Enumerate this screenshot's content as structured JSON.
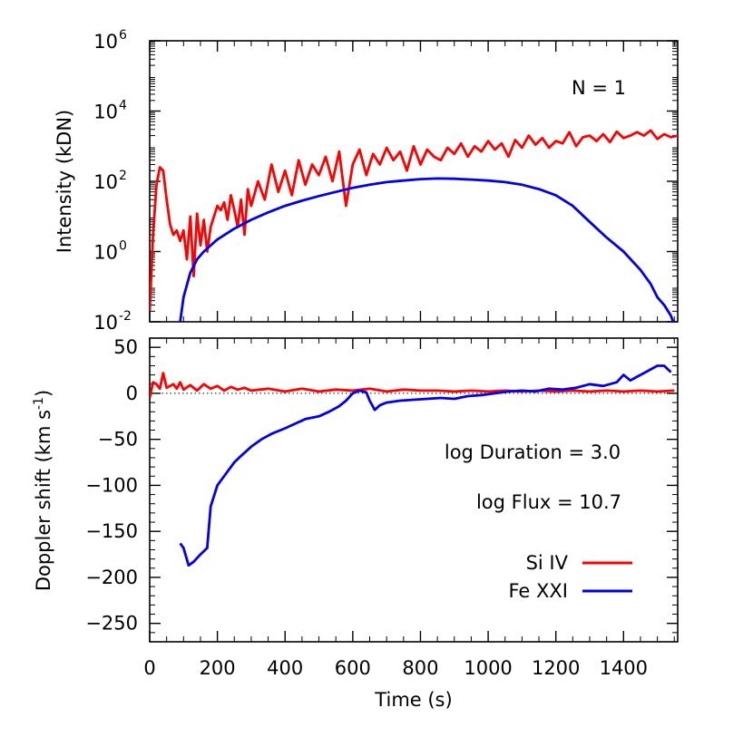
{
  "chart_data": [
    {
      "type": "line",
      "panel": "top",
      "ylabel": "Intensity (kDN)",
      "yscale": "log",
      "ylim": [
        0.01,
        1000000
      ],
      "xlim": [
        0,
        1560
      ],
      "yticks": [
        {
          "value": 0.01,
          "base": "10",
          "exp": "-2"
        },
        {
          "value": 1,
          "base": "10",
          "exp": "0"
        },
        {
          "value": 100,
          "base": "10",
          "exp": "2"
        },
        {
          "value": 10000,
          "base": "10",
          "exp": "4"
        },
        {
          "value": 1000000,
          "base": "10",
          "exp": "6"
        }
      ],
      "annotation": "N = 1",
      "series": [
        {
          "name": "Si IV",
          "color": "#ff0000",
          "x": [
            0,
            10,
            20,
            30,
            40,
            50,
            60,
            70,
            80,
            90,
            100,
            110,
            120,
            130,
            140,
            150,
            160,
            170,
            180,
            190,
            200,
            210,
            220,
            230,
            240,
            250,
            260,
            270,
            280,
            290,
            300,
            320,
            340,
            360,
            380,
            400,
            420,
            440,
            460,
            480,
            500,
            520,
            540,
            560,
            580,
            600,
            620,
            640,
            660,
            680,
            700,
            720,
            740,
            760,
            780,
            800,
            820,
            840,
            860,
            880,
            900,
            920,
            940,
            960,
            980,
            1000,
            1020,
            1040,
            1060,
            1080,
            1100,
            1120,
            1140,
            1160,
            1180,
            1200,
            1220,
            1240,
            1260,
            1280,
            1300,
            1320,
            1340,
            1360,
            1380,
            1400,
            1420,
            1440,
            1460,
            1480,
            1500,
            1520,
            1540,
            1560
          ],
          "y": [
            0.02,
            3,
            80,
            250,
            200,
            30,
            6,
            3,
            4,
            2,
            4,
            0.6,
            10,
            0.2,
            12,
            1.5,
            8,
            1,
            5,
            10,
            20,
            15,
            25,
            8,
            40,
            15,
            5,
            30,
            3,
            60,
            20,
            100,
            30,
            300,
            50,
            200,
            40,
            400,
            80,
            300,
            150,
            500,
            100,
            700,
            20,
            300,
            800,
            150,
            600,
            300,
            900,
            400,
            700,
            200,
            1000,
            300,
            800,
            500,
            400,
            900,
            600,
            1200,
            500,
            1000,
            700,
            1400,
            800,
            1200,
            500,
            1500,
            900,
            2000,
            1100,
            1700,
            900,
            1400,
            1200,
            2500,
            1000,
            1800,
            2000,
            1400,
            2200,
            1300,
            2600,
            1700,
            2000,
            2500,
            2000,
            2800,
            1600,
            2200,
            1800,
            2000
          ]
        },
        {
          "name": "Fe XXI",
          "color": "#0000ee",
          "x": [
            90,
            100,
            120,
            140,
            160,
            180,
            200,
            250,
            300,
            350,
            400,
            450,
            500,
            550,
            600,
            650,
            700,
            750,
            800,
            850,
            900,
            950,
            1000,
            1050,
            1100,
            1150,
            1200,
            1250,
            1300,
            1350,
            1400,
            1450,
            1480,
            1500,
            1520,
            1540,
            1550
          ],
          "y": [
            0.01,
            0.05,
            0.25,
            0.6,
            1,
            1.5,
            2.2,
            4.5,
            8,
            13,
            20,
            28,
            38,
            50,
            65,
            80,
            95,
            105,
            115,
            120,
            118,
            112,
            105,
            95,
            80,
            60,
            40,
            20,
            7,
            2.5,
            1,
            0.3,
            0.12,
            0.05,
            0.03,
            0.015,
            0.008
          ]
        }
      ]
    },
    {
      "type": "line",
      "panel": "bottom",
      "xlabel": "Time (s)",
      "ylabel": "Doppler shift (km s",
      "ylabel_sup": "-1",
      "ylabel_close": ")",
      "ylim": [
        -270,
        60
      ],
      "xlim": [
        0,
        1560
      ],
      "xticks": [
        0,
        200,
        400,
        600,
        800,
        1000,
        1200,
        1400
      ],
      "yticks": [
        50,
        0,
        -50,
        -100,
        -150,
        -200,
        -250
      ],
      "ytick_labels": [
        "50",
        "0",
        "−50",
        "−100",
        "−150",
        "−200",
        "−250"
      ],
      "zero_line": true,
      "annotations": [
        "log Duration = 3.0",
        "log Flux = 10.7"
      ],
      "legend": "right",
      "series": [
        {
          "name": "Si IV",
          "color": "#ff0000",
          "x": [
            0,
            10,
            20,
            30,
            40,
            50,
            60,
            70,
            80,
            90,
            100,
            120,
            140,
            160,
            180,
            200,
            220,
            240,
            260,
            280,
            300,
            350,
            400,
            450,
            500,
            550,
            600,
            650,
            700,
            750,
            800,
            850,
            900,
            950,
            1000,
            1050,
            1100,
            1150,
            1200,
            1250,
            1300,
            1350,
            1400,
            1450,
            1500,
            1550
          ],
          "y": [
            -5,
            12,
            10,
            5,
            22,
            6,
            8,
            10,
            5,
            12,
            4,
            9,
            3,
            10,
            5,
            8,
            3,
            7,
            4,
            6,
            3,
            5,
            2,
            5,
            2,
            4,
            3,
            5,
            2,
            4,
            3,
            3,
            2,
            3,
            2,
            3,
            2,
            3,
            2,
            3,
            2,
            3,
            2,
            3,
            2,
            3
          ]
        },
        {
          "name": "Fe XXI",
          "color": "#0000ee",
          "x": [
            90,
            100,
            115,
            130,
            150,
            170,
            180,
            200,
            230,
            250,
            270,
            300,
            330,
            360,
            400,
            430,
            460,
            500,
            530,
            560,
            580,
            600,
            620,
            640,
            650,
            665,
            680,
            700,
            740,
            780,
            820,
            860,
            900,
            940,
            980,
            1020,
            1060,
            1100,
            1140,
            1180,
            1220,
            1260,
            1300,
            1340,
            1380,
            1400,
            1420,
            1440,
            1460,
            1480,
            1500,
            1520,
            1540
          ],
          "y": [
            -163,
            -168,
            -187,
            -183,
            -175,
            -168,
            -123,
            -100,
            -85,
            -75,
            -68,
            -58,
            -50,
            -44,
            -38,
            -33,
            -28,
            -25,
            -20,
            -14,
            -8,
            0,
            3,
            1,
            -8,
            -18,
            -13,
            -10,
            -8,
            -7,
            -6,
            -5,
            -6,
            -3,
            -2,
            0,
            2,
            3,
            2,
            5,
            4,
            6,
            10,
            8,
            12,
            20,
            14,
            18,
            22,
            26,
            30,
            30,
            23
          ]
        }
      ]
    }
  ]
}
